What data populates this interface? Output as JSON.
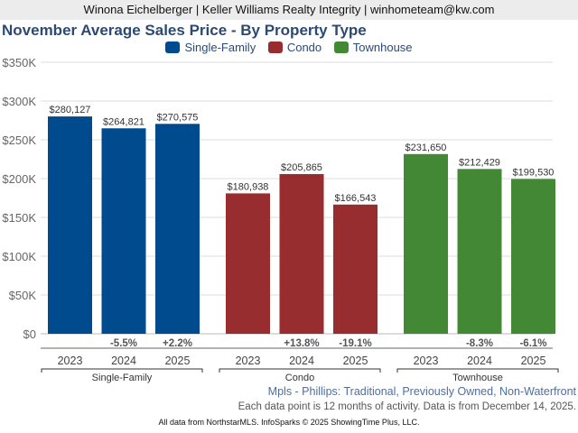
{
  "banner": {
    "text": "Winona Eichelberger | Keller Williams Realty Integrity | winhometeam@kw.com"
  },
  "colors": {
    "single_family": "#004b8d",
    "condo": "#982d30",
    "townhouse": "#438935",
    "title": "#2c4a72"
  },
  "footer": {
    "subtitle": "Mpls - Phillips: Traditional, Previously Owned, Non-Waterfront",
    "note": "Each data point is 12 months of activity. Data is from December 14, 2025.",
    "copyright": "All data from NorthstarMLS. InfoSparks © 2025 ShowingTime Plus, LLC."
  },
  "chart_data": {
    "type": "bar",
    "title": "November Average Sales Price - By Property Type",
    "xlabel": "",
    "ylabel": "",
    "ylim": [
      0,
      350000
    ],
    "yticks": [
      0,
      50000,
      100000,
      150000,
      200000,
      250000,
      300000,
      350000
    ],
    "ytick_labels": [
      "$0",
      "$50K",
      "$100K",
      "$150K",
      "$200K",
      "$250K",
      "$300K",
      "$350K"
    ],
    "grid": true,
    "legend_position": "top-center",
    "legend": [
      "Single-Family",
      "Condo",
      "Townhouse"
    ],
    "categories": [
      "2023",
      "2024",
      "2025"
    ],
    "series": [
      {
        "name": "Single-Family",
        "color": "#004b8d",
        "values": [
          280127,
          264821,
          270575
        ],
        "value_labels": [
          "$280,127",
          "$264,821",
          "$270,575"
        ],
        "changes": [
          "",
          "-5.5%",
          "+2.2%"
        ]
      },
      {
        "name": "Condo",
        "color": "#982d30",
        "values": [
          180938,
          205865,
          166543
        ],
        "value_labels": [
          "$180,938",
          "$205,865",
          "$166,543"
        ],
        "changes": [
          "",
          "+13.8%",
          "-19.1%"
        ]
      },
      {
        "name": "Townhouse",
        "color": "#438935",
        "values": [
          231650,
          212429,
          199530
        ],
        "value_labels": [
          "$231,650",
          "$212,429",
          "$199,530"
        ],
        "changes": [
          "",
          "-8.3%",
          "-6.1%"
        ]
      }
    ]
  }
}
